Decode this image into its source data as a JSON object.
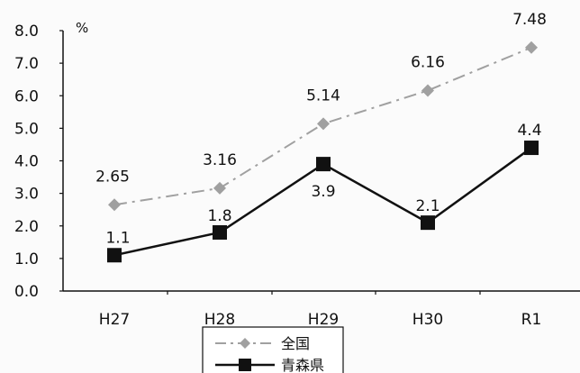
{
  "chart_data": {
    "type": "line",
    "categories": [
      "H27",
      "H28",
      "H29",
      "H30",
      "R1"
    ],
    "series": [
      {
        "name": "全国",
        "values": [
          2.65,
          3.16,
          5.14,
          6.16,
          7.48
        ],
        "color": "#a0a0a0",
        "dash": "dash-dot",
        "marker": "diamond"
      },
      {
        "name": "青森県",
        "values": [
          1.1,
          1.8,
          3.9,
          2.1,
          4.4
        ],
        "color": "#111111",
        "dash": "solid",
        "marker": "square"
      }
    ],
    "yticks": [
      "0.0",
      "1.0",
      "2.0",
      "3.0",
      "4.0",
      "5.0",
      "6.0",
      "7.0",
      "8.0"
    ],
    "ylim": [
      0,
      8
    ],
    "ylabel": "%",
    "grid": false,
    "legend_position": "bottom"
  }
}
